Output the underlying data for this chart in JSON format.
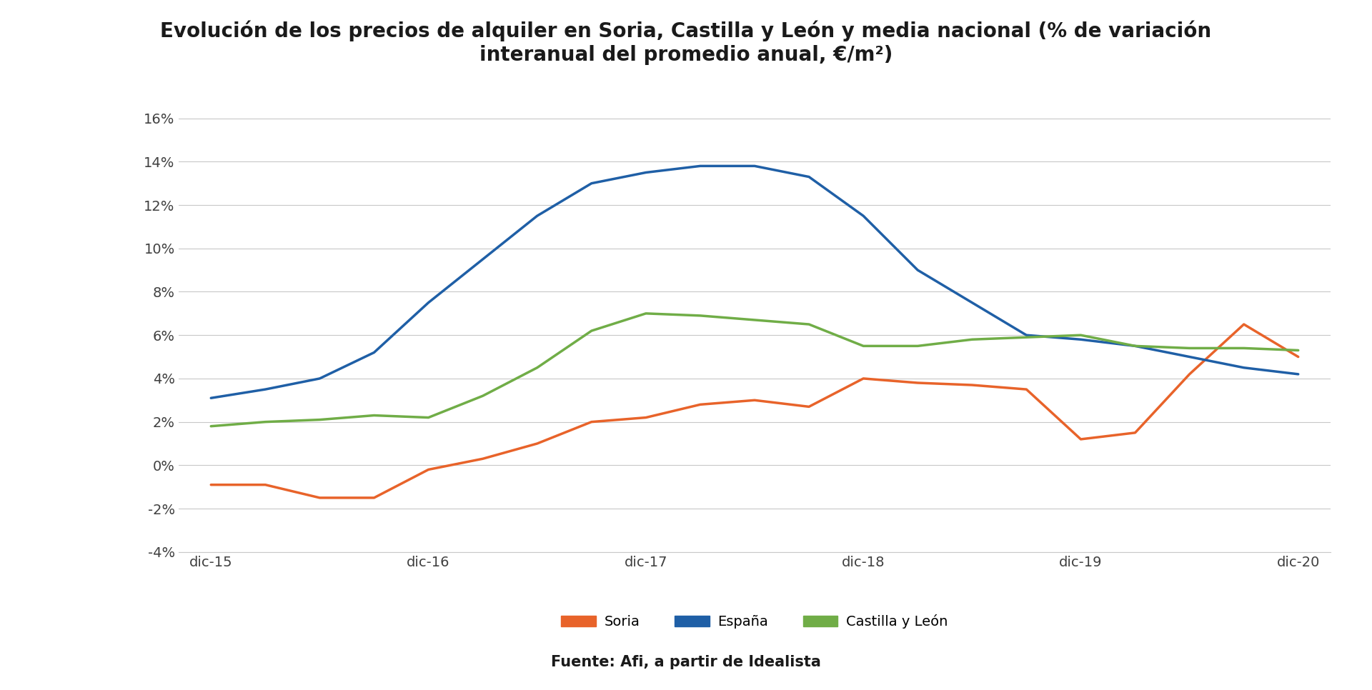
{
  "title_line1": "Evolución de los precios de alquiler en Soria, Castilla y León y media nacional (% de variación",
  "title_line2": "interanual del promedio anual, €/m²)",
  "source": "Fuente: Afi, a partir de Idealista",
  "x_labels": [
    "dic-15",
    "dic-16",
    "dic-17",
    "dic-18",
    "dic-19",
    "dic-20"
  ],
  "x_positions": [
    0,
    1,
    2,
    3,
    4,
    5
  ],
  "soria": {
    "label": "Soria",
    "color": "#E8632A",
    "data_x": [
      0,
      0.25,
      0.5,
      0.75,
      1.0,
      1.25,
      1.5,
      1.75,
      2.0,
      2.25,
      2.5,
      2.75,
      3.0,
      3.25,
      3.5,
      3.75,
      4.0,
      4.25,
      4.5,
      4.75,
      5.0
    ],
    "data_y": [
      -0.9,
      -0.9,
      -1.5,
      -1.5,
      -0.2,
      0.3,
      1.0,
      2.0,
      2.2,
      2.8,
      3.0,
      2.7,
      4.0,
      3.8,
      3.7,
      3.5,
      1.2,
      1.5,
      4.2,
      6.5,
      5.0
    ]
  },
  "espana": {
    "label": "España",
    "color": "#1F5FA6",
    "data_x": [
      0,
      0.25,
      0.5,
      0.75,
      1.0,
      1.25,
      1.5,
      1.75,
      2.0,
      2.25,
      2.5,
      2.75,
      3.0,
      3.25,
      3.5,
      3.75,
      4.0,
      4.25,
      4.5,
      4.75,
      5.0
    ],
    "data_y": [
      3.1,
      3.5,
      4.0,
      5.2,
      7.5,
      9.5,
      11.5,
      13.0,
      13.5,
      13.8,
      13.8,
      13.3,
      11.5,
      9.0,
      7.5,
      6.0,
      5.8,
      5.5,
      5.0,
      4.5,
      4.2
    ]
  },
  "castilla": {
    "label": "Castilla y León",
    "color": "#70AD47",
    "data_x": [
      0,
      0.25,
      0.5,
      0.75,
      1.0,
      1.25,
      1.5,
      1.75,
      2.0,
      2.25,
      2.5,
      2.75,
      3.0,
      3.25,
      3.5,
      3.75,
      4.0,
      4.25,
      4.5,
      4.75,
      5.0
    ],
    "data_y": [
      1.8,
      2.0,
      2.1,
      2.3,
      2.2,
      3.2,
      4.5,
      6.2,
      7.0,
      6.9,
      6.7,
      6.5,
      5.5,
      5.5,
      5.8,
      5.9,
      6.0,
      5.5,
      5.4,
      5.4,
      5.3
    ]
  },
  "ylim": [
    -4,
    17
  ],
  "yticks": [
    -4,
    -2,
    0,
    2,
    4,
    6,
    8,
    10,
    12,
    14,
    16
  ],
  "background_color": "#FFFFFF",
  "grid_color": "#C8C8C8",
  "title_fontsize": 20,
  "tick_fontsize": 14,
  "legend_fontsize": 14,
  "source_fontsize": 15
}
